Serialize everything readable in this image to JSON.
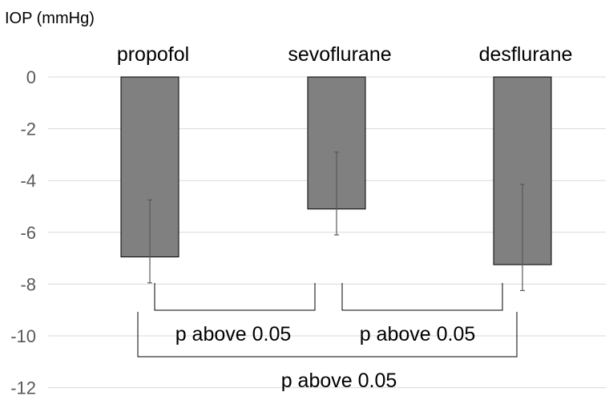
{
  "chart_data": {
    "type": "bar",
    "ylabel": "IOP (mmHg)",
    "categories": [
      "propofol",
      "sevoflurane",
      "desflurane"
    ],
    "values": [
      -6.95,
      -5.1,
      -7.25
    ],
    "error_upper": [
      -4.75,
      -2.9,
      -4.15
    ],
    "error_lower": [
      -7.95,
      -6.1,
      -8.25
    ],
    "ylim": [
      -12,
      0
    ],
    "yticks": [
      0,
      -2,
      -4,
      -6,
      -8,
      -10,
      -12
    ],
    "ytick_labels": [
      "0",
      "-2",
      "-4",
      "-6",
      "-8",
      "-10",
      "-12"
    ],
    "grid": true,
    "bar_color": "#808080",
    "comparisons": [
      {
        "from": "propofol",
        "to": "sevoflurane",
        "label": "p above 0.05"
      },
      {
        "from": "sevoflurane",
        "to": "desflurane",
        "label": "p above 0.05"
      },
      {
        "from": "propofol",
        "to": "desflurane",
        "label": "p above 0.05"
      }
    ]
  }
}
